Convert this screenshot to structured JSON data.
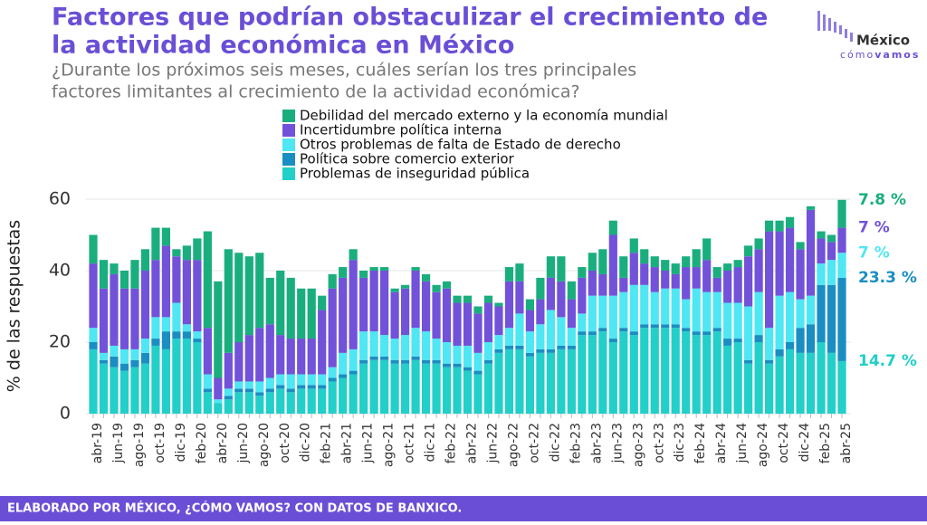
{
  "chart_data": {
    "type": "stacked_bar",
    "title": "Factores que podrían obstaculizar el crecimiento de la actividad económica en México",
    "title_lines": [
      "Factores que podrían obstaculizar el crecimiento de",
      "la actividad económica en México"
    ],
    "subtitle_lines": [
      "¿Durante los próximos seis meses, cuáles serían los tres principales",
      "factores limitantes al crecimiento de la actividad económica?"
    ],
    "y_label": "% de las respuestas",
    "source": "ELABORADO POR MÉXICO, ¿CÓMO VAMOS? CON DATOS DE BANXICO.",
    "logo": [
      "México",
      "cómo",
      "vamos"
    ],
    "ylim": [
      0,
      60
    ],
    "yticks": [
      0,
      20,
      40,
      60
    ],
    "grid": true,
    "categories": [
      "abr-19",
      null,
      "jun-19",
      null,
      "ago-19",
      null,
      "oct-19",
      null,
      "dic-19",
      null,
      "feb-20",
      null,
      "abr-20",
      null,
      "jun-20",
      null,
      "ago-20",
      null,
      "oct-20",
      null,
      "dic-20",
      null,
      "feb-21",
      null,
      "abr-21",
      null,
      "jun-21",
      null,
      "ago-21",
      null,
      "oct-21",
      null,
      "dic-21",
      null,
      "feb-22",
      null,
      "abr-22",
      null,
      "jun-22",
      null,
      "ago-22",
      null,
      "oct-22",
      null,
      "dic-22",
      null,
      "feb-23",
      null,
      "abr-23",
      null,
      "jun-23",
      null,
      "ago-23",
      null,
      "oct-23",
      null,
      "dic-23",
      null,
      "feb-24",
      null,
      "abr-24",
      null,
      "jun-24",
      null,
      "ago-24",
      null,
      "oct-24",
      null,
      "dic-24",
      null,
      "feb-25",
      null,
      "abr-25"
    ],
    "series": [
      {
        "name": "Problemas de inseguridad pública",
        "color": "#22cfc9",
        "end_label": "14.7 %",
        "values": [
          18,
          14,
          13,
          12,
          13,
          14,
          19,
          18,
          21,
          21,
          20,
          6,
          3,
          4,
          6,
          6,
          5,
          6,
          7,
          6,
          7,
          7,
          7,
          9,
          10,
          11,
          14,
          15,
          15,
          14,
          14,
          15,
          14,
          14,
          13,
          13,
          12,
          11,
          14,
          17,
          18,
          18,
          16,
          17,
          17,
          18,
          18,
          22,
          22,
          23,
          20,
          23,
          22,
          24,
          24,
          24,
          24,
          23,
          22,
          22,
          23,
          19,
          20,
          14,
          20,
          14,
          16,
          18,
          17,
          17,
          20,
          17,
          14.7
        ]
      },
      {
        "name": "Política sobre comercio exterior",
        "color": "#1a8ec2",
        "end_label": "23.3 %",
        "values": [
          2,
          1,
          3,
          2,
          2,
          3,
          2,
          5,
          2,
          2,
          1,
          1,
          0,
          1,
          1,
          1,
          1,
          1,
          1,
          1,
          1,
          1,
          1,
          1,
          1,
          1,
          1,
          1,
          1,
          1,
          1,
          1,
          1,
          1,
          1,
          1,
          1,
          1,
          1,
          1,
          1,
          1,
          1,
          1,
          1,
          1,
          1,
          1,
          1,
          1,
          1,
          1,
          1,
          1,
          1,
          1,
          1,
          1,
          1,
          1,
          1,
          2,
          1,
          1,
          2,
          1,
          2,
          2,
          7,
          8,
          16,
          19,
          23.3
        ]
      },
      {
        "name": "Otros problemas de falta de Estado de derecho",
        "color": "#4ee7f3",
        "end_label": "7 %",
        "values": [
          4,
          2,
          3,
          4,
          3,
          4,
          6,
          4,
          8,
          2,
          2,
          4,
          1,
          2,
          2,
          2,
          3,
          3,
          3,
          4,
          3,
          3,
          3,
          3,
          6,
          6,
          8,
          7,
          6,
          6,
          7,
          8,
          8,
          6,
          6,
          5,
          6,
          5,
          5,
          4,
          5,
          9,
          6,
          7,
          11,
          8,
          5,
          5,
          10,
          9,
          12,
          10,
          13,
          11,
          9,
          10,
          10,
          8,
          12,
          11,
          10,
          10,
          10,
          15,
          12,
          9,
          15,
          14,
          8,
          8,
          6,
          7,
          7
        ]
      },
      {
        "name": "Incertidumbre política interna",
        "color": "#7152d9",
        "end_label": "7 %",
        "values": [
          18,
          18,
          20,
          17,
          17,
          19,
          16,
          20,
          13,
          18,
          20,
          13,
          6,
          10,
          11,
          13,
          15,
          15,
          11,
          10,
          10,
          10,
          18,
          22,
          21,
          25,
          15,
          17,
          18,
          13,
          13,
          16,
          14,
          13,
          15,
          12,
          12,
          11,
          11,
          8,
          13,
          9,
          6,
          7,
          9,
          10,
          8,
          10,
          7,
          6,
          17,
          4,
          9,
          6,
          7,
          5,
          4,
          9,
          6,
          9,
          4,
          9,
          10,
          14,
          12,
          27,
          18,
          18,
          14,
          24,
          7,
          5,
          7
        ]
      },
      {
        "name": "Debilidad del mercado externo y la economía mundial",
        "color": "#1aae7e",
        "end_label": "7.8 %",
        "values": [
          8,
          8,
          3,
          5,
          8,
          6,
          9,
          5,
          2,
          4,
          6,
          27,
          27,
          29,
          25,
          22,
          21,
          13,
          18,
          17,
          14,
          14,
          4,
          4,
          3,
          3,
          2,
          1,
          1,
          1,
          1,
          1,
          2,
          2,
          2,
          2,
          2,
          2,
          2,
          1,
          4,
          5,
          3,
          6,
          6,
          7,
          5,
          3,
          5,
          7,
          4,
          6,
          4,
          4,
          3,
          3,
          3,
          3,
          5,
          6,
          3,
          2,
          2,
          3,
          3,
          3,
          3,
          3,
          2,
          1,
          2,
          2,
          7.8
        ]
      }
    ]
  }
}
